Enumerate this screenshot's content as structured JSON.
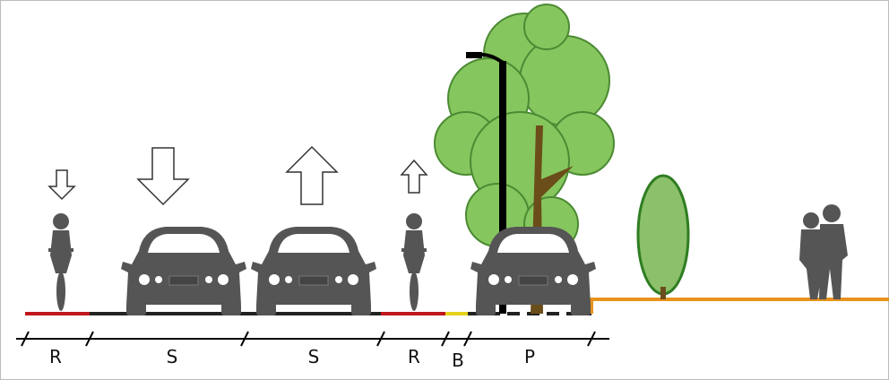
{
  "segments": [
    {
      "label": "R"
    },
    {
      "label": "S"
    },
    {
      "label": "S"
    },
    {
      "label": "R"
    },
    {
      "label": "B"
    },
    {
      "label": "P"
    }
  ]
}
